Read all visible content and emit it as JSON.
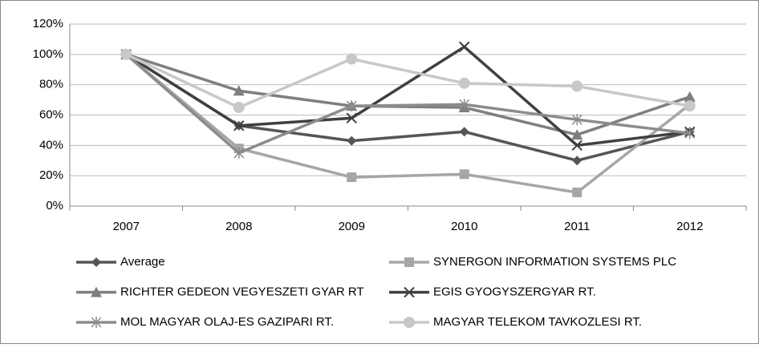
{
  "chart_data": {
    "type": "line",
    "categories": [
      "2007",
      "2008",
      "2009",
      "2010",
      "2011",
      "2012"
    ],
    "series": [
      {
        "name": "Average",
        "color": "#555555",
        "marker": "diamond",
        "values": [
          100,
          53,
          43,
          49,
          30,
          49
        ]
      },
      {
        "name": "SYNERGON INFORMATION SYSTEMS PLC",
        "color": "#a6a6a6",
        "marker": "square",
        "values": [
          100,
          38,
          19,
          21,
          9,
          67
        ]
      },
      {
        "name": "RICHTER GEDEON VEGYESZETI GYAR RT",
        "color": "#7f7f7f",
        "marker": "triangle",
        "values": [
          100,
          76,
          66,
          65,
          47,
          72
        ]
      },
      {
        "name": "EGIS GYOGYSZERGYAR RT.",
        "color": "#404040",
        "marker": "x",
        "values": [
          100,
          53,
          58,
          105,
          40,
          49
        ]
      },
      {
        "name": "MOL MAGYAR OLAJ-ES GAZIPARI RT.",
        "color": "#8c8c8c",
        "marker": "star",
        "values": [
          100,
          35,
          66,
          67,
          57,
          48
        ]
      },
      {
        "name": "MAGYAR TELEKOM TAVKOZLESI RT.",
        "color": "#c8c8c8",
        "marker": "circle",
        "values": [
          100,
          65,
          97,
          81,
          79,
          66
        ]
      }
    ],
    "ylim": [
      0,
      120
    ],
    "yticks": [
      {
        "value": 0,
        "label": "0%"
      },
      {
        "value": 20,
        "label": "20%"
      },
      {
        "value": 40,
        "label": "40%"
      },
      {
        "value": 60,
        "label": "60%"
      },
      {
        "value": 80,
        "label": "80%"
      },
      {
        "value": 100,
        "label": "100%"
      },
      {
        "value": 120,
        "label": "120%"
      }
    ],
    "grid": true
  }
}
